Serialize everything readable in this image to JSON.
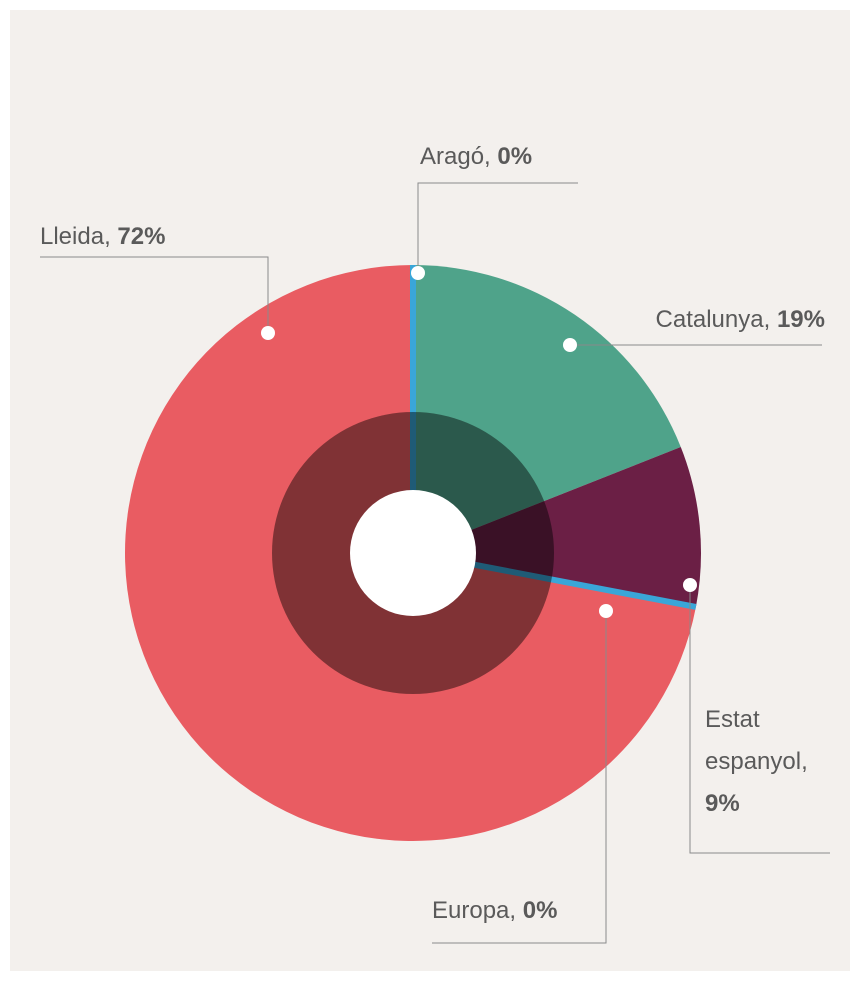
{
  "chart_data": {
    "type": "pie",
    "categories": [
      "Aragó",
      "Catalunya",
      "Estat espanyol",
      "Europa",
      "Lleida"
    ],
    "values": [
      0,
      19,
      9,
      0,
      72
    ],
    "value_labels": [
      "0%",
      "19%",
      "9%",
      "0%",
      "72%"
    ],
    "label_separator": ",",
    "colors": [
      "#3aa6d8",
      "#4fa38a",
      "#6b1f45",
      "#3aa6d8",
      "#e95c62"
    ]
  }
}
